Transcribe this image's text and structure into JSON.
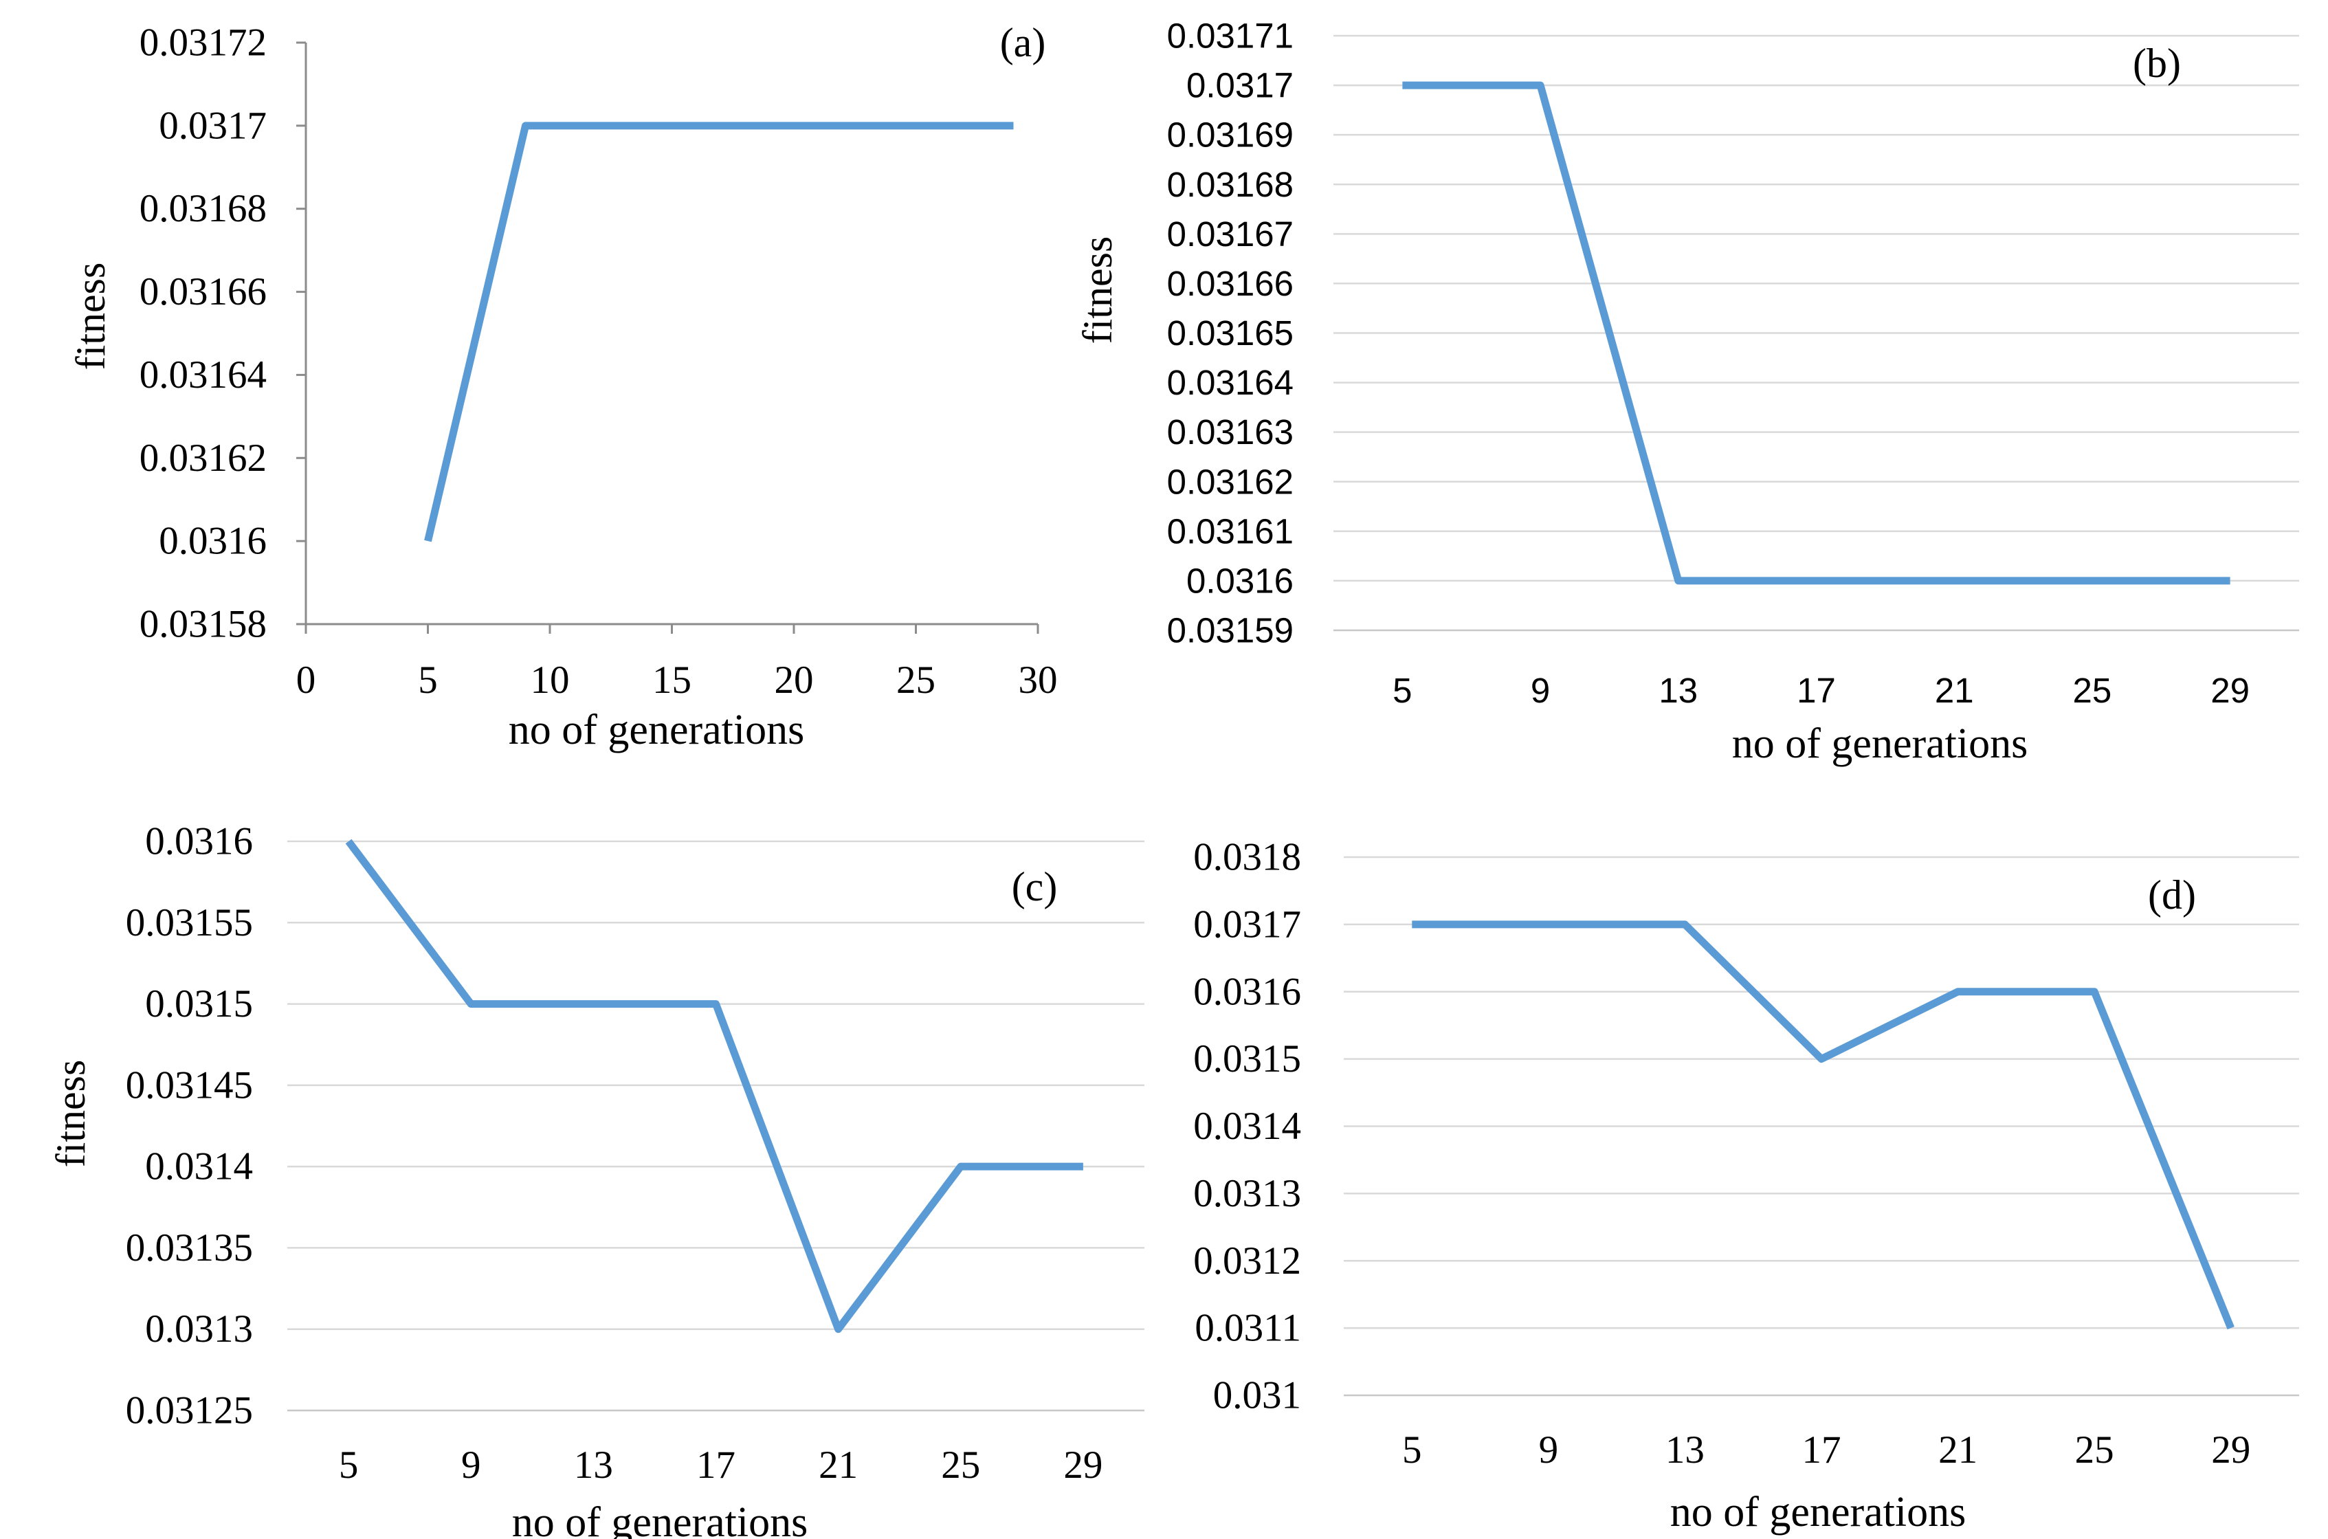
{
  "chart_data": [
    {
      "id": "a",
      "type": "line",
      "panel_label": "(a)",
      "xlabel": "no of generations",
      "ylabel": "fitness",
      "x_axis_kind": "numeric",
      "xlim": [
        0,
        30
      ],
      "x_ticks": [
        "0",
        "5",
        "10",
        "15",
        "20",
        "25",
        "30"
      ],
      "ylim": [
        0.03158,
        0.03172
      ],
      "y_ticks": [
        "0.03158",
        "0.0316",
        "0.03162",
        "0.03164",
        "0.03166",
        "0.03168",
        "0.0317",
        "0.03172"
      ],
      "grid": false,
      "series": [
        {
          "name": "fitness",
          "x": [
            5,
            9,
            13,
            17,
            21,
            25,
            29
          ],
          "y": [
            0.0316,
            0.0317,
            0.0317,
            0.0317,
            0.0317,
            0.0317,
            0.0317
          ],
          "color": "#5b9bd5"
        }
      ]
    },
    {
      "id": "b",
      "type": "line",
      "panel_label": "(b)",
      "xlabel": "no of generations",
      "ylabel": "fitness",
      "x_axis_kind": "category",
      "categories": [
        "5",
        "9",
        "13",
        "17",
        "21",
        "25",
        "29"
      ],
      "ylim": [
        0.03159,
        0.03171
      ],
      "y_ticks": [
        "0.03159",
        "0.0316",
        "0.03161",
        "0.03162",
        "0.03163",
        "0.03164",
        "0.03165",
        "0.03166",
        "0.03167",
        "0.03168",
        "0.03169",
        "0.0317",
        "0.03171"
      ],
      "grid": true,
      "series": [
        {
          "name": "fitness",
          "values": [
            0.0317,
            0.0317,
            0.0316,
            0.0316,
            0.0316,
            0.0316,
            0.0316
          ],
          "color": "#5b9bd5"
        }
      ]
    },
    {
      "id": "c",
      "type": "line",
      "panel_label": "(c)",
      "xlabel": "no of generations",
      "ylabel": "fitness",
      "x_axis_kind": "category",
      "categories": [
        "5",
        "9",
        "13",
        "17",
        "21",
        "25",
        "29"
      ],
      "ylim": [
        0.03125,
        0.0316
      ],
      "y_ticks": [
        "0.03125",
        "0.0313",
        "0.03135",
        "0.0314",
        "0.03145",
        "0.0315",
        "0.03155",
        "0.0316"
      ],
      "grid": true,
      "series": [
        {
          "name": "fitness",
          "values": [
            0.0316,
            0.0315,
            0.0315,
            0.0315,
            0.0313,
            0.0314,
            0.0314
          ],
          "color": "#5b9bd5"
        }
      ]
    },
    {
      "id": "d",
      "type": "line",
      "panel_label": "(d)",
      "xlabel": "no of generations",
      "ylabel": "",
      "x_axis_kind": "category",
      "categories": [
        "5",
        "9",
        "13",
        "17",
        "21",
        "25",
        "29"
      ],
      "ylim": [
        0.031,
        0.0318
      ],
      "y_ticks": [
        "0.031",
        "0.0311",
        "0.0312",
        "0.0313",
        "0.0314",
        "0.0315",
        "0.0316",
        "0.0317",
        "0.0318"
      ],
      "grid": true,
      "series": [
        {
          "name": "fitness",
          "values": [
            0.0317,
            0.0317,
            0.0317,
            0.0315,
            0.0316,
            0.0316,
            0.0311
          ],
          "color": "#5b9bd5"
        }
      ]
    }
  ]
}
